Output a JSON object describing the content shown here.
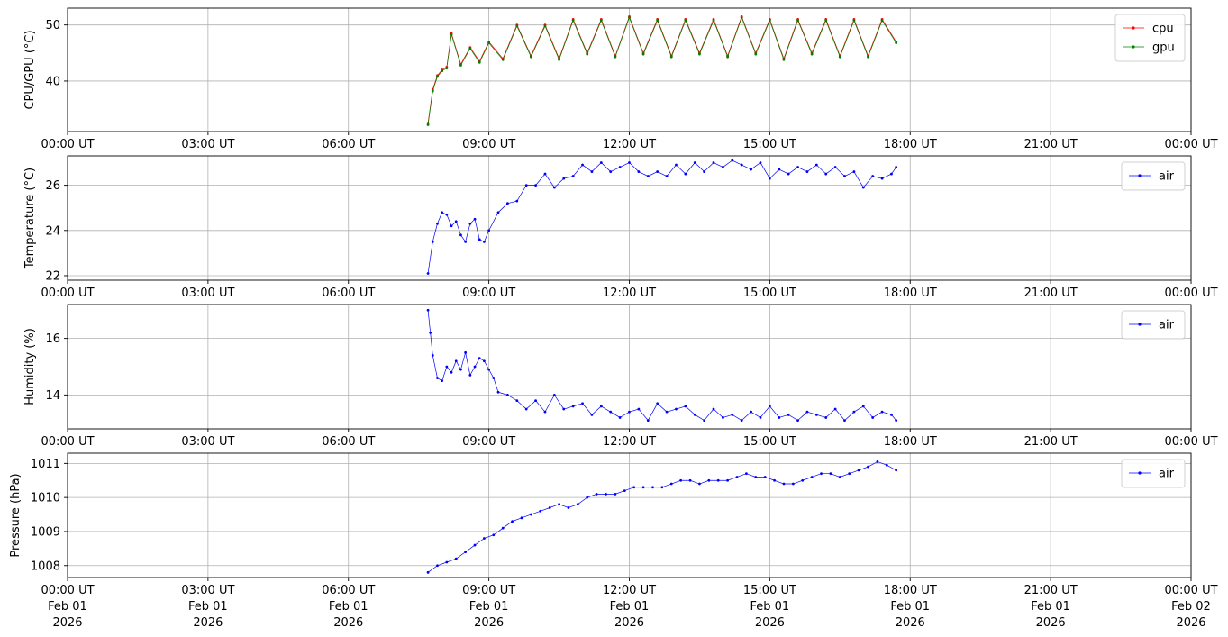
{
  "chart_data": [
    {
      "type": "line",
      "ylabel": "CPU/GPU (°C)",
      "ylim": [
        31,
        53
      ],
      "yticks": [
        40,
        50
      ],
      "x_range": [
        "2026-02-01 00:00 UT",
        "2026-02-02 00:00 UT"
      ],
      "xtick_labels": [
        "00:00 UT",
        "03:00 UT",
        "06:00 UT",
        "09:00 UT",
        "12:00 UT",
        "15:00 UT",
        "18:00 UT",
        "21:00 UT",
        "00:00 UT"
      ],
      "grid": true,
      "legend": "top-right",
      "series": [
        {
          "name": "cpu",
          "color": "#ff0000",
          "x_hours": [
            7.7,
            7.8,
            7.9,
            8.0,
            8.1,
            8.2,
            8.4,
            8.6,
            8.8,
            9.0,
            9.3,
            9.6,
            9.9,
            10.2,
            10.5,
            10.8,
            11.1,
            11.4,
            11.7,
            12.0,
            12.3,
            12.6,
            12.9,
            13.2,
            13.5,
            13.8,
            14.1,
            14.4,
            14.7,
            15.0,
            15.3,
            15.6,
            15.9,
            16.2,
            16.5,
            16.8,
            17.1,
            17.4,
            17.7
          ],
          "values": [
            32.5,
            38.5,
            41,
            42,
            42.5,
            48.5,
            43,
            46,
            43.5,
            47,
            44,
            50,
            44.5,
            50,
            44,
            51,
            45,
            51,
            44.5,
            51.5,
            45,
            51,
            44.5,
            51,
            45,
            51,
            44.5,
            51.5,
            45,
            51,
            44,
            51,
            45,
            51,
            44.5,
            51,
            44.5,
            51,
            47
          ]
        },
        {
          "name": "gpu",
          "color": "#008000",
          "x_hours": [
            7.7,
            7.8,
            7.9,
            8.0,
            8.1,
            8.2,
            8.4,
            8.6,
            8.8,
            9.0,
            9.3,
            9.6,
            9.9,
            10.2,
            10.5,
            10.8,
            11.1,
            11.4,
            11.7,
            12.0,
            12.3,
            12.6,
            12.9,
            13.2,
            13.5,
            13.8,
            14.1,
            14.4,
            14.7,
            15.0,
            15.3,
            15.6,
            15.9,
            16.2,
            16.5,
            16.8,
            17.1,
            17.4,
            17.7
          ],
          "values": [
            32.2,
            38.2,
            40.8,
            41.8,
            42.3,
            48.3,
            42.8,
            45.8,
            43.3,
            46.8,
            43.8,
            49.8,
            44.3,
            49.8,
            43.8,
            50.8,
            44.8,
            50.8,
            44.3,
            51.3,
            44.8,
            50.8,
            44.3,
            50.8,
            44.8,
            50.8,
            44.3,
            51.3,
            44.8,
            50.8,
            43.8,
            50.8,
            44.8,
            50.8,
            44.3,
            50.8,
            44.3,
            50.8,
            46.8
          ]
        }
      ]
    },
    {
      "type": "line",
      "ylabel": "Temperature (°C)",
      "ylim": [
        21.8,
        27.3
      ],
      "yticks": [
        22,
        24,
        26
      ],
      "x_range": [
        "2026-02-01 00:00 UT",
        "2026-02-02 00:00 UT"
      ],
      "xtick_labels": [
        "00:00 UT",
        "03:00 UT",
        "06:00 UT",
        "09:00 UT",
        "12:00 UT",
        "15:00 UT",
        "18:00 UT",
        "21:00 UT",
        "00:00 UT"
      ],
      "grid": true,
      "legend": "top-right",
      "series": [
        {
          "name": "air",
          "color": "#0000ff",
          "x_hours": [
            7.7,
            7.8,
            7.9,
            8.0,
            8.1,
            8.2,
            8.3,
            8.4,
            8.5,
            8.6,
            8.7,
            8.8,
            8.9,
            9.0,
            9.2,
            9.4,
            9.6,
            9.8,
            10.0,
            10.2,
            10.4,
            10.6,
            10.8,
            11.0,
            11.2,
            11.4,
            11.6,
            11.8,
            12.0,
            12.2,
            12.4,
            12.6,
            12.8,
            13.0,
            13.2,
            13.4,
            13.6,
            13.8,
            14.0,
            14.2,
            14.4,
            14.6,
            14.8,
            15.0,
            15.2,
            15.4,
            15.6,
            15.8,
            16.0,
            16.2,
            16.4,
            16.6,
            16.8,
            17.0,
            17.2,
            17.4,
            17.6,
            17.7
          ],
          "values": [
            22.1,
            23.5,
            24.3,
            24.8,
            24.7,
            24.2,
            24.4,
            23.8,
            23.5,
            24.3,
            24.5,
            23.6,
            23.5,
            24.0,
            24.8,
            25.2,
            25.3,
            26.0,
            26.0,
            26.5,
            25.9,
            26.3,
            26.4,
            26.9,
            26.6,
            27.0,
            26.6,
            26.8,
            27.0,
            26.6,
            26.4,
            26.6,
            26.4,
            26.9,
            26.5,
            27.0,
            26.6,
            27.0,
            26.8,
            27.1,
            26.9,
            26.7,
            27.0,
            26.3,
            26.7,
            26.5,
            26.8,
            26.6,
            26.9,
            26.5,
            26.8,
            26.4,
            26.6,
            25.9,
            26.4,
            26.3,
            26.5,
            26.8
          ]
        }
      ]
    },
    {
      "type": "line",
      "ylabel": "Humidity (%)",
      "ylim": [
        12.8,
        17.2
      ],
      "yticks": [
        14,
        16
      ],
      "x_range": [
        "2026-02-01 00:00 UT",
        "2026-02-02 00:00 UT"
      ],
      "xtick_labels": [
        "00:00 UT",
        "03:00 UT",
        "06:00 UT",
        "09:00 UT",
        "12:00 UT",
        "15:00 UT",
        "18:00 UT",
        "21:00 UT",
        "00:00 UT"
      ],
      "grid": true,
      "legend": "top-right",
      "series": [
        {
          "name": "air",
          "color": "#0000ff",
          "x_hours": [
            7.7,
            7.75,
            7.8,
            7.9,
            8.0,
            8.1,
            8.2,
            8.3,
            8.4,
            8.5,
            8.6,
            8.7,
            8.8,
            8.9,
            9.0,
            9.1,
            9.2,
            9.4,
            9.6,
            9.8,
            10.0,
            10.2,
            10.4,
            10.6,
            10.8,
            11.0,
            11.2,
            11.4,
            11.6,
            11.8,
            12.0,
            12.2,
            12.4,
            12.6,
            12.8,
            13.0,
            13.2,
            13.4,
            13.6,
            13.8,
            14.0,
            14.2,
            14.4,
            14.6,
            14.8,
            15.0,
            15.2,
            15.4,
            15.6,
            15.8,
            16.0,
            16.2,
            16.4,
            16.6,
            16.8,
            17.0,
            17.2,
            17.4,
            17.6,
            17.7
          ],
          "values": [
            17.0,
            16.2,
            15.4,
            14.6,
            14.5,
            15.0,
            14.8,
            15.2,
            14.9,
            15.5,
            14.7,
            15.0,
            15.3,
            15.2,
            14.9,
            14.6,
            14.1,
            14.0,
            13.8,
            13.5,
            13.8,
            13.4,
            14.0,
            13.5,
            13.6,
            13.7,
            13.3,
            13.6,
            13.4,
            13.2,
            13.4,
            13.5,
            13.1,
            13.7,
            13.4,
            13.5,
            13.6,
            13.3,
            13.1,
            13.5,
            13.2,
            13.3,
            13.1,
            13.4,
            13.2,
            13.6,
            13.2,
            13.3,
            13.1,
            13.4,
            13.3,
            13.2,
            13.5,
            13.1,
            13.4,
            13.6,
            13.2,
            13.4,
            13.3,
            13.1
          ]
        }
      ]
    },
    {
      "type": "line",
      "ylabel": "Pressure (hPa)",
      "ylim": [
        1007.65,
        1011.3
      ],
      "yticks": [
        1008,
        1009,
        1010,
        1011
      ],
      "x_range": [
        "2026-02-01 00:00 UT",
        "2026-02-02 00:00 UT"
      ],
      "xtick_labels": [
        "00:00 UT",
        "03:00 UT",
        "06:00 UT",
        "09:00 UT",
        "12:00 UT",
        "15:00 UT",
        "18:00 UT",
        "21:00 UT",
        "00:00 UT"
      ],
      "xtick_date_labels": [
        "Feb 01",
        "Feb 01",
        "Feb 01",
        "Feb 01",
        "Feb 01",
        "Feb 01",
        "Feb 01",
        "Feb 01",
        "Feb 02"
      ],
      "xtick_year_labels": [
        "2026",
        "2026",
        "2026",
        "2026",
        "2026",
        "2026",
        "2026",
        "2026",
        "2026"
      ],
      "grid": true,
      "legend": "top-right",
      "series": [
        {
          "name": "air",
          "color": "#0000ff",
          "x_hours": [
            7.7,
            7.9,
            8.1,
            8.3,
            8.5,
            8.7,
            8.9,
            9.1,
            9.3,
            9.5,
            9.7,
            9.9,
            10.1,
            10.3,
            10.5,
            10.7,
            10.9,
            11.1,
            11.3,
            11.5,
            11.7,
            11.9,
            12.1,
            12.3,
            12.5,
            12.7,
            12.9,
            13.1,
            13.3,
            13.5,
            13.7,
            13.9,
            14.1,
            14.3,
            14.5,
            14.7,
            14.9,
            15.1,
            15.3,
            15.5,
            15.7,
            15.9,
            16.1,
            16.3,
            16.5,
            16.7,
            16.9,
            17.1,
            17.3,
            17.5,
            17.7
          ],
          "values": [
            1007.8,
            1008.0,
            1008.1,
            1008.2,
            1008.4,
            1008.6,
            1008.8,
            1008.9,
            1009.1,
            1009.3,
            1009.4,
            1009.5,
            1009.6,
            1009.7,
            1009.8,
            1009.7,
            1009.8,
            1010.0,
            1010.1,
            1010.1,
            1010.1,
            1010.2,
            1010.3,
            1010.3,
            1010.3,
            1010.3,
            1010.4,
            1010.5,
            1010.5,
            1010.4,
            1010.5,
            1010.5,
            1010.5,
            1010.6,
            1010.7,
            1010.6,
            1010.6,
            1010.5,
            1010.4,
            1010.4,
            1010.5,
            1010.6,
            1010.7,
            1010.7,
            1010.6,
            1010.7,
            1010.8,
            1010.9,
            1011.05,
            1010.95,
            1010.8
          ]
        }
      ]
    }
  ]
}
